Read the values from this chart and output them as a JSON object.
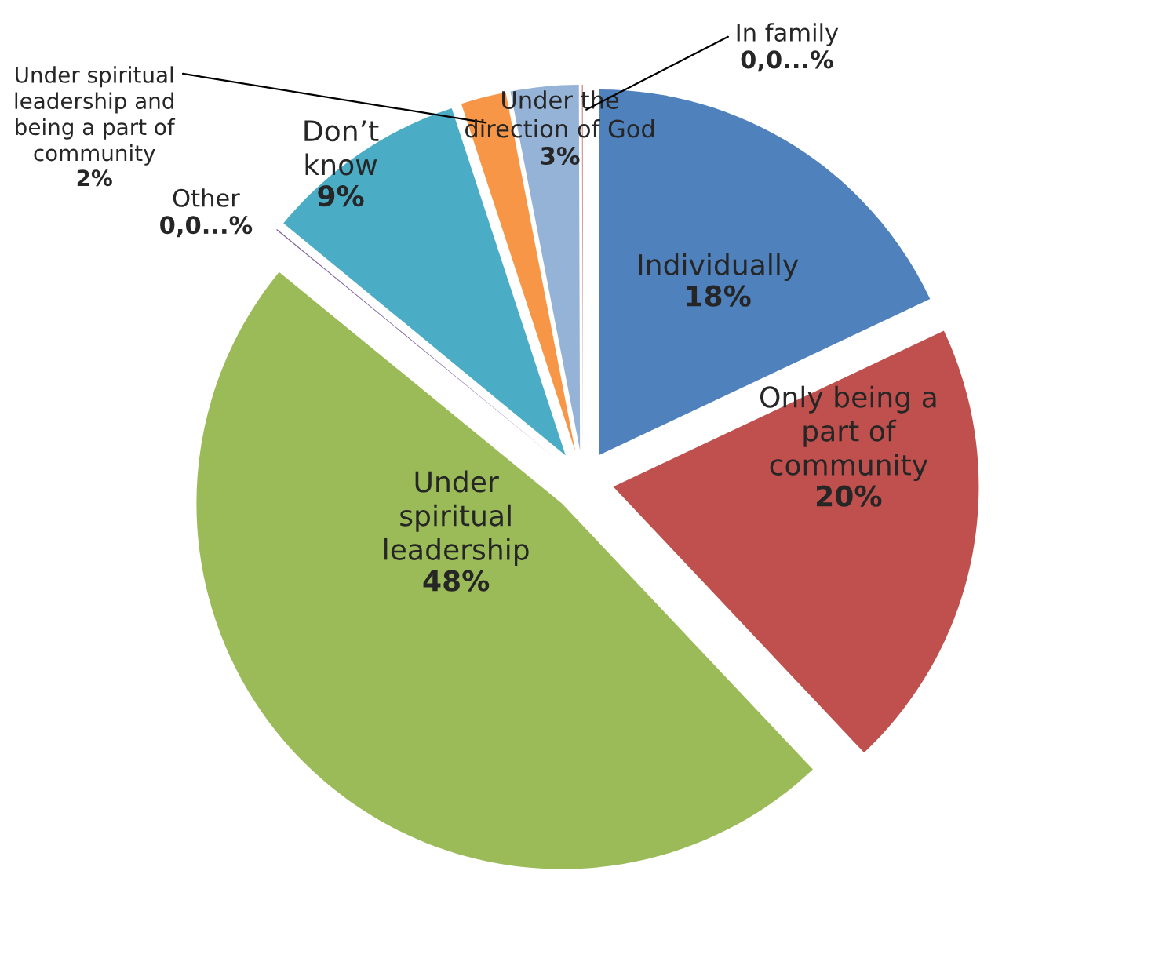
{
  "chart_data": {
    "type": "pie",
    "categories": [
      "Individually",
      "Only being a\npart of\ncommunity",
      "Under\nspiritual\nleadership",
      "Other",
      "Don’t\nknow",
      "Under spiritual\nleadership and\nbeing a part of\ncommunity",
      "Under the\ndirection of God",
      "In family"
    ],
    "values": [
      18,
      20,
      48,
      0.05,
      9,
      2,
      3,
      0.05
    ],
    "value_labels": [
      "18%",
      "20%",
      "48%",
      "0,0...%",
      "9%",
      "2%",
      "3%",
      "0,0...%"
    ],
    "colors": [
      "#4f81bd",
      "#c0504d",
      "#9bbb59",
      "#8064a2",
      "#4bacc6",
      "#f79646",
      "#95b3d7",
      "#d99694"
    ],
    "legend": false
  }
}
